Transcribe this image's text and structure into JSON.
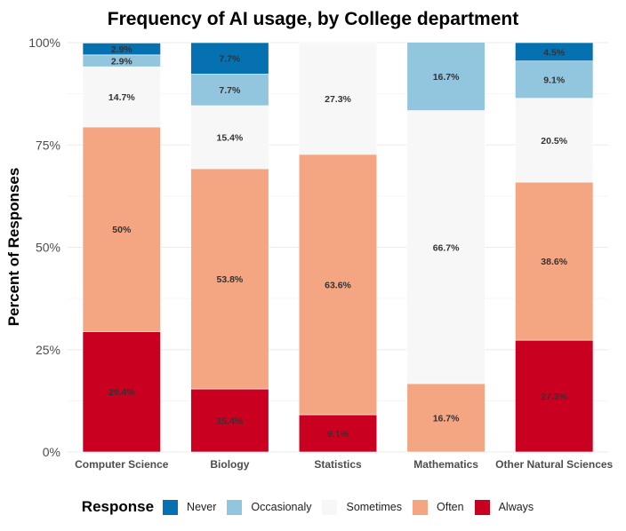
{
  "chart_data": {
    "type": "bar",
    "stacked": true,
    "title": "Frequency of AI usage, by College department",
    "xlabel": "",
    "ylabel": "Percent of Responses",
    "ylim": [
      0,
      100
    ],
    "yticks": [
      "0%",
      "25%",
      "50%",
      "75%",
      "100%"
    ],
    "ytick_values": [
      0,
      25,
      50,
      75,
      100
    ],
    "grid": true,
    "categories": [
      "Computer Science",
      "Biology",
      "Statistics",
      "Mathematics",
      "Other Natural Sciences"
    ],
    "legend_title": "Response",
    "legend_position": "bottom",
    "series": [
      {
        "name": "Always",
        "color": "#ca0020",
        "values": [
          29.4,
          15.4,
          9.1,
          0,
          27.3
        ],
        "labels": [
          "29.4%",
          "15.4%",
          "9.1%",
          "",
          "27.3%"
        ]
      },
      {
        "name": "Often",
        "color": "#f4a582",
        "values": [
          50,
          53.8,
          63.6,
          16.7,
          38.6
        ],
        "labels": [
          "50%",
          "53.8%",
          "63.6%",
          "16.7%",
          "38.6%"
        ]
      },
      {
        "name": "Sometimes",
        "color": "#f7f7f7",
        "values": [
          14.7,
          15.4,
          27.3,
          66.7,
          20.5
        ],
        "labels": [
          "14.7%",
          "15.4%",
          "27.3%",
          "66.7%",
          "20.5%"
        ]
      },
      {
        "name": "Occasionaly",
        "color": "#92c5de",
        "values": [
          2.9,
          7.7,
          0,
          16.7,
          9.1
        ],
        "labels": [
          "2.9%",
          "7.7%",
          "",
          "16.7%",
          "9.1%"
        ]
      },
      {
        "name": "Never",
        "color": "#0571b0",
        "values": [
          2.9,
          7.7,
          0,
          0,
          4.5
        ],
        "labels": [
          "2.9%",
          "7.7%",
          "",
          "",
          "4.5%"
        ]
      }
    ],
    "legend_order": [
      "Never",
      "Occasionaly",
      "Sometimes",
      "Often",
      "Always"
    ]
  }
}
